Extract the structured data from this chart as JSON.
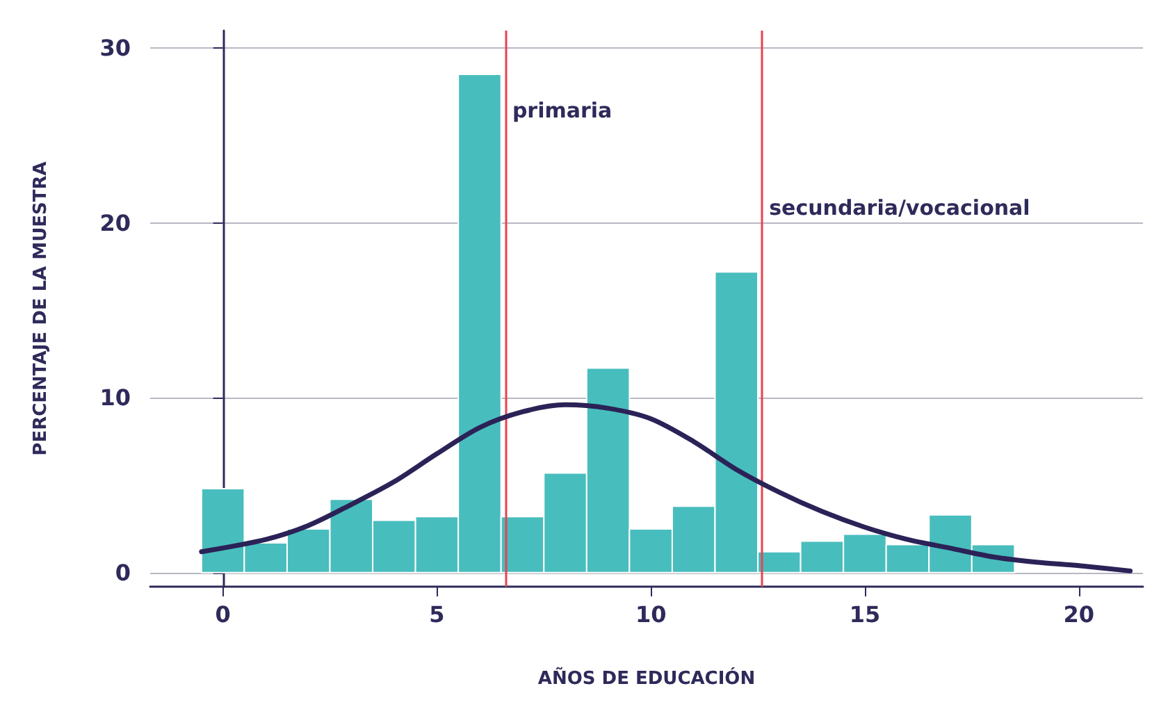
{
  "chart_data": {
    "type": "histogram",
    "xlabel": "AÑOS DE EDUCACIÓN",
    "ylabel": "PERCENTAJE DE LA MUESTRA",
    "bins": [
      -0.5,
      0.5,
      1.5,
      2.5,
      3.5,
      4.5,
      5.5,
      6.5,
      7.5,
      8.5,
      9.5,
      10.5,
      11.5,
      12.5,
      13.5,
      14.5,
      15.5,
      16.5,
      17.5,
      18.5
    ],
    "values": [
      4.8,
      1.7,
      2.5,
      4.2,
      3.0,
      3.2,
      28.5,
      3.2,
      5.7,
      11.7,
      2.5,
      3.8,
      17.2,
      1.2,
      1.8,
      2.2,
      1.6,
      3.3,
      1.6
    ],
    "color": "#48bdbd",
    "series": [
      {
        "type": "line",
        "color": "#2b2257",
        "x": [
          -0.5,
          1,
          2,
          3,
          4,
          5,
          6,
          7,
          8,
          9,
          10,
          11,
          12,
          13,
          14,
          15,
          16,
          17,
          18,
          19,
          20,
          21.2
        ],
        "values": [
          1.2,
          1.9,
          2.7,
          3.9,
          5.2,
          6.8,
          8.3,
          9.2,
          9.6,
          9.4,
          8.8,
          7.5,
          5.9,
          4.6,
          3.5,
          2.6,
          1.9,
          1.4,
          0.9,
          0.6,
          0.4,
          0.1
        ]
      }
    ],
    "ref_lines": [
      {
        "axis": "x",
        "value": 6.6,
        "label": "primaria",
        "color": "#e8434f"
      },
      {
        "axis": "x",
        "value": 12.6,
        "label": "secundaria/vocacional",
        "color": "#e8434f"
      }
    ],
    "xlim": [
      -1.7,
      21.5
    ],
    "ylim": [
      -0.8,
      31
    ],
    "xticks": [
      0,
      5,
      10,
      15,
      20
    ],
    "yticks": [
      0,
      10,
      20,
      30
    ],
    "grid": "y",
    "marker": "none",
    "line_style": "solid"
  }
}
